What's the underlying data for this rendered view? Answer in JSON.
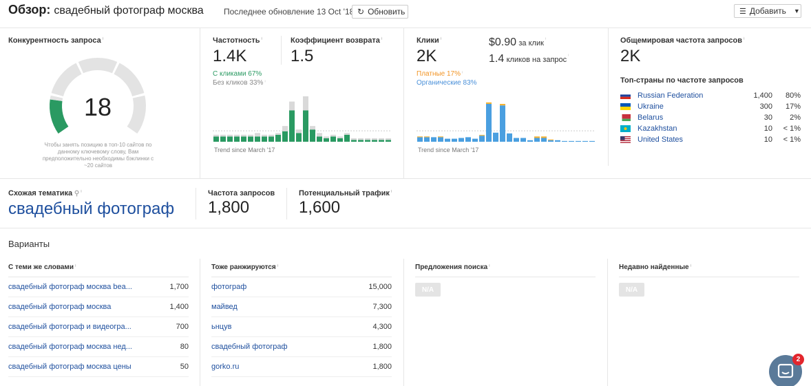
{
  "header": {
    "title_prefix": "Обзор:",
    "title_keyword": "свадебный фотограф москва",
    "last_update": "Последнее обновление 13 Oct '18",
    "refresh_label": "Обновить",
    "add_label": "Добавить"
  },
  "difficulty": {
    "label": "Конкурентность запроса",
    "value": "18",
    "note": "Чтобы занять позицию в топ-10 сайтов по данному ключевому слову, Вам предположительно необходимы бэклинки с ~20 сайтов",
    "level": 0.18,
    "colors": {
      "active": "#2a9a62",
      "inactive": "#e3e3e3"
    }
  },
  "volume_block": {
    "label": "Частотность",
    "value": "1.4K",
    "clicks_pct": "С кликами 67%",
    "no_clicks_pct": "Без кликов 33%",
    "trend": "Trend since March '17"
  },
  "return_rate": {
    "label": "Коэффициент возврата",
    "value": "1.5"
  },
  "clicks_block": {
    "label": "Клики",
    "value": "2K",
    "cpc_value": "$0.90",
    "cpc_suffix": "за клик",
    "cps_value": "1.4",
    "cps_suffix": "кликов на запрос",
    "paid_pct": "Платные 17%",
    "organic_pct": "Органические 83%",
    "trend": "Trend since March '17"
  },
  "global": {
    "label": "Общемировая частота запросов",
    "value": "2K",
    "top_label": "Топ-страны по частоте запросов",
    "countries": [
      {
        "name": "Russian Federation",
        "value": "1,400",
        "pct": "80%",
        "flag": "ru"
      },
      {
        "name": "Ukraine",
        "value": "300",
        "pct": "17%",
        "flag": "ua"
      },
      {
        "name": "Belarus",
        "value": "30",
        "pct": "2%",
        "flag": "by"
      },
      {
        "name": "Kazakhstan",
        "value": "10",
        "pct": "< 1%",
        "flag": "kz"
      },
      {
        "name": "United States",
        "value": "10",
        "pct": "< 1%",
        "flag": "us"
      }
    ]
  },
  "parent": {
    "label": "Схожая тематика",
    "keyword": "свадебный фотограф",
    "vol_label": "Частота запросов",
    "vol_value": "1,800",
    "traffic_label": "Потенциальный трафик",
    "traffic_value": "1,600"
  },
  "variants": {
    "title": "Варианты",
    "same_terms": {
      "label": "С теми же словами",
      "rows": [
        {
          "kw": "свадебный фотограф москва bea...",
          "vol": "1,700"
        },
        {
          "kw": "свадебный фотограф москва",
          "vol": "1,400"
        },
        {
          "kw": "свадебный фотограф и видеогра...",
          "vol": "700"
        },
        {
          "kw": "свадебный фотограф москва нед...",
          "vol": "80"
        },
        {
          "kw": "свадебный фотограф москва цены",
          "vol": "50"
        }
      ]
    },
    "also_rank": {
      "label": "Тоже ранжируются",
      "rows": [
        {
          "kw": "фотограф",
          "vol": "15,000"
        },
        {
          "kw": "майвед",
          "vol": "7,300"
        },
        {
          "kw": "ьнцув",
          "vol": "4,300"
        },
        {
          "kw": "свадебный фотограф",
          "vol": "1,800"
        },
        {
          "kw": "gorko.ru",
          "vol": "1,800"
        }
      ]
    },
    "suggestions": {
      "label": "Предложения поиска",
      "na": "N/A"
    },
    "newly": {
      "label": "Недавно найденные",
      "na": "N/A"
    }
  },
  "chat": {
    "badge": "2"
  },
  "chart_data": [
    {
      "type": "bar",
      "title": "Частотность",
      "stacked": true,
      "series": [
        {
          "name": "С кликами",
          "color": "#2a9a62",
          "values": [
            3,
            3,
            3,
            3,
            3,
            3,
            3,
            3,
            3,
            4,
            6,
            18,
            5,
            18,
            7,
            3,
            2,
            3,
            2,
            4,
            1,
            1,
            1,
            1,
            1,
            1
          ]
        },
        {
          "name": "Без кликов",
          "color": "#d9d9d9",
          "values": [
            1,
            1,
            1,
            1,
            1,
            1,
            2,
            1,
            1,
            1,
            3,
            5,
            2,
            8,
            2,
            2,
            1,
            1,
            1,
            1,
            1,
            1,
            1,
            1,
            1,
            1
          ]
        }
      ],
      "ylim": [
        0,
        26
      ]
    },
    {
      "type": "bar",
      "title": "Клики",
      "stacked": true,
      "series": [
        {
          "name": "Органические",
          "color": "#4a9fe0",
          "values": [
            6,
            6,
            6,
            6,
            4,
            4,
            5,
            6,
            4,
            8,
            50,
            12,
            48,
            11,
            5,
            5,
            2,
            5,
            5,
            2,
            2,
            1,
            1,
            1,
            1,
            1
          ]
        },
        {
          "name": "Платные",
          "color": "#f5b335",
          "values": [
            1,
            1,
            0,
            1,
            0,
            0,
            0,
            0,
            0,
            1,
            2,
            0,
            2,
            0,
            0,
            0,
            0,
            2,
            2,
            1,
            0,
            0,
            0,
            0,
            0,
            0
          ]
        }
      ],
      "ylim": [
        0,
        60
      ]
    }
  ]
}
